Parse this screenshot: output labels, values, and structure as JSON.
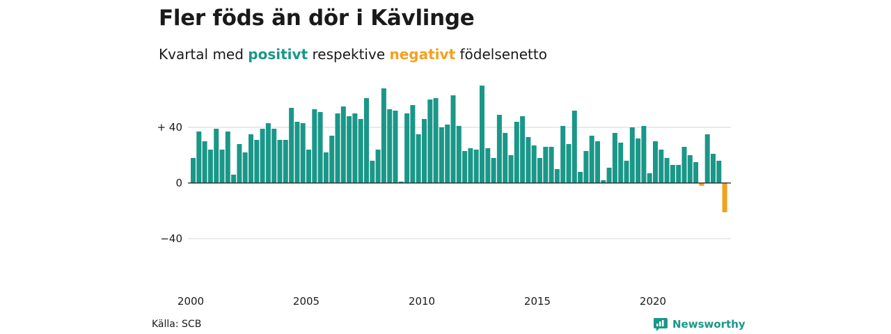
{
  "title": "Fler föds än dör i Kävlinge",
  "subtitle": {
    "prefix": "Kvartal med",
    "positive_word": "positivt",
    "middle": "respektive",
    "negative_word": "negativt",
    "suffix": "födelsenetto"
  },
  "colors": {
    "positive": "#1a9788",
    "negative": "#f5a01a",
    "grid": "#dddddd",
    "axis": "#1a1a1a"
  },
  "source": "Källa: SCB",
  "brand": {
    "name": "Newsworthy",
    "icon": "newsworthy-logo-icon"
  },
  "chart_data": {
    "type": "bar",
    "x_start": "2000 Q1",
    "x_ticks": [
      "2000",
      "2005",
      "2010",
      "2015",
      "2020"
    ],
    "y_ticks": [
      {
        "value": 40,
        "label": "+ 40"
      },
      {
        "value": 0,
        "label": "0"
      },
      {
        "value": -40,
        "label": "−40"
      }
    ],
    "ylim": [
      -70,
      70
    ],
    "grid": true,
    "values": [
      18,
      37,
      30,
      24,
      39,
      24,
      37,
      6,
      28,
      22,
      35,
      31,
      39,
      43,
      39,
      31,
      31,
      54,
      44,
      43,
      24,
      53,
      51,
      22,
      34,
      50,
      55,
      48,
      50,
      46,
      61,
      16,
      24,
      68,
      53,
      52,
      1,
      50,
      56,
      35,
      46,
      60,
      61,
      40,
      42,
      63,
      41,
      23,
      25,
      24,
      70,
      25,
      18,
      49,
      36,
      20,
      44,
      48,
      33,
      27,
      18,
      26,
      26,
      10,
      41,
      28,
      52,
      8,
      23,
      34,
      30,
      2,
      11,
      36,
      29,
      16,
      40,
      32,
      41,
      7,
      30,
      24,
      18,
      13,
      13,
      26,
      20,
      15,
      -2,
      35,
      21,
      16,
      -21
    ]
  }
}
